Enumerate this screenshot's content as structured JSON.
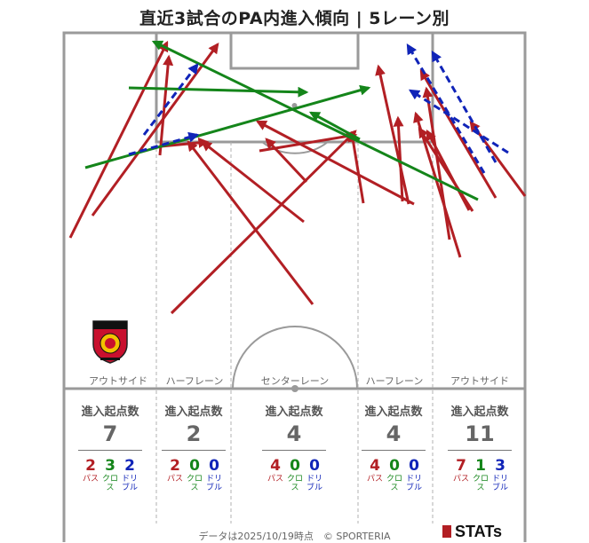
{
  "title": "直近3試合のPA内進入傾向 | 5レーン別",
  "lanes": [
    {
      "label": "アウトサイド",
      "header": "進入起点数",
      "total": "7",
      "pass": "2",
      "cross": "3",
      "dribble": "2"
    },
    {
      "label": "ハーフレーン",
      "header": "進入起点数",
      "total": "2",
      "pass": "2",
      "cross": "0",
      "dribble": "0"
    },
    {
      "label": "センターレーン",
      "header": "進入起点数",
      "total": "4",
      "pass": "4",
      "cross": "0",
      "dribble": "0"
    },
    {
      "label": "ハーフレーン",
      "header": "進入起点数",
      "total": "4",
      "pass": "4",
      "cross": "0",
      "dribble": "0"
    },
    {
      "label": "アウトサイド",
      "header": "進入起点数",
      "total": "11",
      "pass": "7",
      "cross": "1",
      "dribble": "3"
    }
  ],
  "legend": {
    "pass": "パス",
    "cross": "クロス",
    "dribble": "ドリブル"
  },
  "colors": {
    "pass": "#b21f24",
    "cross": "#14851a",
    "dribble": "#1024b8"
  },
  "footer": "データは2025/10/19時点　© SPORTERIA",
  "brand": "STATs",
  "chart_data": {
    "type": "arrow-map",
    "categories": [
      "アウトサイド",
      "ハーフレーン",
      "センターレーン",
      "ハーフレーン",
      "アウトサイド"
    ],
    "series": [
      {
        "name": "パス",
        "values": [
          2,
          2,
          4,
          4,
          7
        ]
      },
      {
        "name": "クロス",
        "values": [
          3,
          0,
          0,
          0,
          1
        ]
      },
      {
        "name": "ドリブル",
        "values": [
          2,
          0,
          0,
          0,
          3
        ]
      }
    ],
    "arrows": {
      "pass": [
        [
          [
            79,
            268
          ],
          [
            188,
            48
          ]
        ],
        [
          [
            104,
            243
          ],
          [
            245,
            50
          ]
        ],
        [
          [
            180,
            175
          ],
          [
            190,
            64
          ]
        ],
        [
          [
            181,
            165
          ],
          [
            233,
            160
          ]
        ],
        [
          [
            193,
            353
          ],
          [
            400,
            148
          ]
        ],
        [
          [
            352,
            343
          ],
          [
            212,
            160
          ]
        ],
        [
          [
            345,
            205
          ],
          [
            300,
            157
          ]
        ],
        [
          [
            342,
            250
          ],
          [
            228,
            160
          ]
        ],
        [
          [
            460,
            230
          ],
          [
            426,
            75
          ]
        ],
        [
          [
            453,
            227
          ],
          [
            448,
            133
          ]
        ],
        [
          [
            466,
            230
          ],
          [
            290,
            137
          ]
        ],
        [
          [
            518,
            290
          ],
          [
            468,
            128
          ]
        ],
        [
          [
            506,
            270
          ],
          [
            480,
            100
          ]
        ],
        [
          [
            409,
            229
          ],
          [
            396,
            150
          ]
        ],
        [
          [
            528,
            237
          ],
          [
            481,
            148
          ]
        ],
        [
          [
            532,
            238
          ],
          [
            472,
            145
          ]
        ],
        [
          [
            591,
            221
          ],
          [
            530,
            138
          ]
        ],
        [
          [
            558,
            223
          ],
          [
            474,
            80
          ]
        ],
        [
          [
            292,
            170
          ],
          [
            400,
            152
          ]
        ]
      ],
      "cross": [
        [
          [
            96,
            189
          ],
          [
            415,
            99
          ]
        ],
        [
          [
            145,
            99
          ],
          [
            345,
            104
          ]
        ],
        [
          [
            538,
            225
          ],
          [
            173,
            47
          ]
        ],
        [
          [
            405,
            157
          ],
          [
            350,
            127
          ]
        ]
      ],
      "dribble": [
        [
          [
            162,
            152
          ],
          [
            222,
            73
          ]
        ],
        [
          [
            145,
            174
          ],
          [
            222,
            152
          ]
        ],
        [
          [
            572,
            172
          ],
          [
            462,
            102
          ]
        ],
        [
          [
            545,
            195
          ],
          [
            459,
            51
          ]
        ],
        [
          [
            558,
            183
          ],
          [
            487,
            59
          ]
        ]
      ]
    }
  }
}
